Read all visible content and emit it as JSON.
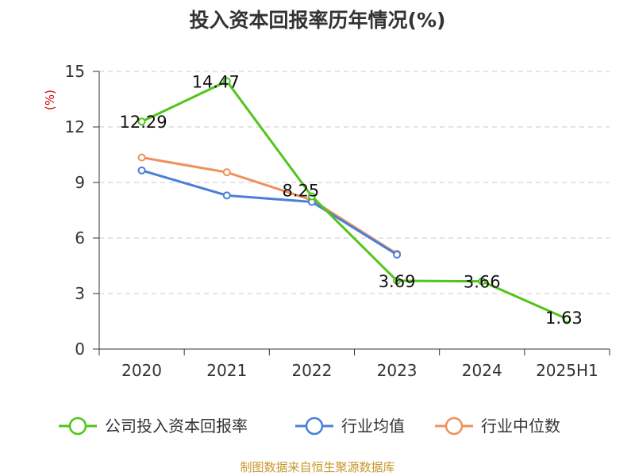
{
  "chart_data": {
    "type": "line",
    "title": "投入资本回报率历年情况(%)",
    "ylabel": "(%)",
    "xlabel": "",
    "categories": [
      "2020",
      "2021",
      "2022",
      "2023",
      "2024",
      "2025H1"
    ],
    "ylim": [
      0,
      15
    ],
    "yticks": [
      0,
      3,
      6,
      9,
      12,
      15
    ],
    "grid": true,
    "legend_position": "bottom",
    "series": [
      {
        "name": "公司投入资本回报率",
        "color": "#52c41a",
        "values": [
          12.29,
          14.47,
          8.25,
          3.69,
          3.66,
          1.63
        ],
        "labels": [
          "12.29",
          "14.47",
          "8.25",
          "3.69",
          "3.66",
          "1.63"
        ]
      },
      {
        "name": "行业均值",
        "color": "#4a7fd9",
        "values": [
          9.65,
          8.3,
          7.95,
          5.1,
          null,
          null
        ]
      },
      {
        "name": "行业中位数",
        "color": "#f0905a",
        "values": [
          10.35,
          9.55,
          8.05,
          5.15,
          null,
          null
        ]
      }
    ]
  },
  "footer": {
    "source": "制图数据来自恒生聚源数据库"
  }
}
